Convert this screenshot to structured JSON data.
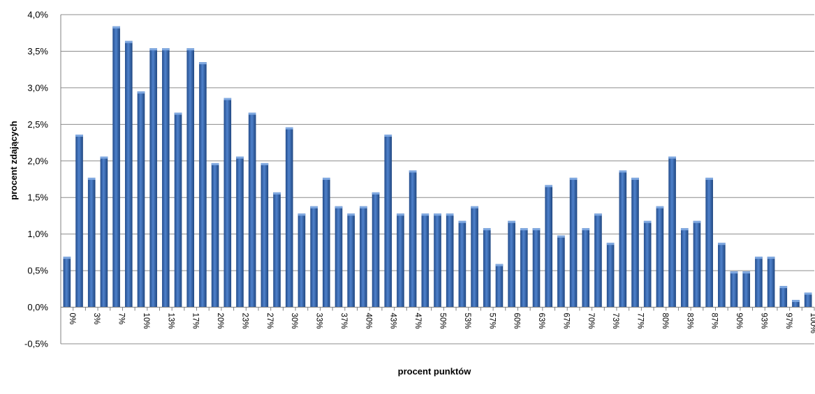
{
  "chart_data": {
    "type": "bar",
    "title": "",
    "xlabel": "procent punktów",
    "ylabel": "procent  zdających",
    "ylim": [
      -0.5,
      4.0
    ],
    "yticks": [
      "4,0%",
      "3,5%",
      "3,0%",
      "2,5%",
      "2,0%",
      "1,5%",
      "1,0%",
      "0,5%",
      "0,0%",
      "-0,5%"
    ],
    "ytick_values": [
      4.0,
      3.5,
      3.0,
      2.5,
      2.0,
      1.5,
      1.0,
      0.5,
      0.0,
      -0.5
    ],
    "grid": true,
    "legend": "none",
    "bar_color": "#3d6cb3",
    "categories": [
      "0%",
      "",
      "3%",
      "",
      "7%",
      "",
      "10%",
      "",
      "13%",
      "",
      "17%",
      "",
      "20%",
      "",
      "23%",
      "",
      "27%",
      "",
      "30%",
      "",
      "33%",
      "",
      "37%",
      "",
      "40%",
      "",
      "43%",
      "",
      "47%",
      "",
      "50%",
      "",
      "53%",
      "",
      "57%",
      "",
      "60%",
      "",
      "63%",
      "",
      "67%",
      "",
      "70%",
      "",
      "73%",
      "",
      "77%",
      "",
      "80%",
      "",
      "83%",
      "",
      "87%",
      "",
      "90%",
      "",
      "93%",
      "",
      "97%",
      "",
      "100%"
    ],
    "values": [
      0.69,
      2.36,
      1.77,
      2.06,
      3.84,
      3.64,
      2.95,
      3.54,
      3.54,
      2.66,
      3.54,
      3.35,
      1.97,
      2.86,
      2.06,
      2.66,
      1.97,
      1.57,
      2.46,
      1.28,
      1.38,
      1.77,
      1.38,
      1.28,
      1.38,
      1.57,
      2.36,
      1.28,
      1.87,
      1.28,
      1.28,
      1.28,
      1.18,
      1.38,
      1.08,
      0.59,
      1.18,
      1.08,
      1.08,
      1.67,
      0.98,
      1.77,
      1.08,
      1.28,
      0.88,
      1.87,
      1.77,
      1.18,
      1.38,
      2.06,
      1.08,
      1.18,
      1.77,
      0.88,
      0.49,
      0.49,
      0.69,
      0.69,
      0.29,
      0.1,
      0.2
    ]
  }
}
